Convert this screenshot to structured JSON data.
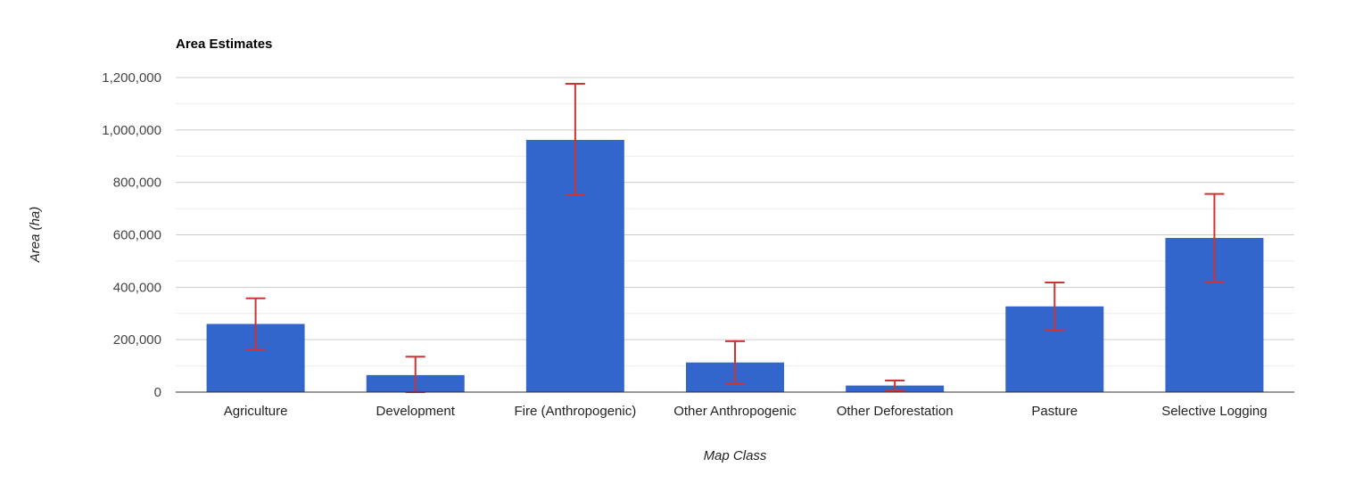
{
  "chart_data": {
    "type": "bar",
    "title": "Area Estimates",
    "xlabel": "Map Class",
    "ylabel": "Area (ha)",
    "categories": [
      "Agriculture",
      "Development",
      "Fire (Anthropogenic)",
      "Other Anthropogenic",
      "Other Deforestation",
      "Pasture",
      "Selective Logging"
    ],
    "values": [
      260000,
      65000,
      962000,
      113000,
      25000,
      327000,
      588000
    ],
    "error_low": [
      163000,
      0,
      753000,
      33000,
      7000,
      236000,
      421000
    ],
    "error_high": [
      358000,
      135000,
      1176000,
      194000,
      44000,
      418000,
      756000
    ],
    "ylim": [
      0,
      1200000
    ],
    "yticks": [
      0,
      200000,
      400000,
      600000,
      800000,
      1000000,
      1200000
    ],
    "ytick_labels": [
      "0",
      "200,000",
      "400,000",
      "600,000",
      "800,000",
      "1,000,000",
      "1,200,000"
    ],
    "grid": true,
    "colors": {
      "bar": "#3366cc",
      "error_bar": "#cc3333",
      "gridline": "#cccccc",
      "minor_gridline": "#ebebeb",
      "axis": "#333333"
    }
  }
}
